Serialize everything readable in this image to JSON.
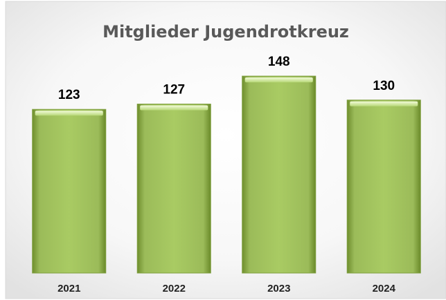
{
  "chart_data": {
    "type": "bar",
    "title": "Mitglieder Jugendrotkreuz",
    "categories": [
      "2021",
      "2022",
      "2023",
      "2024"
    ],
    "values": [
      123,
      127,
      148,
      130
    ],
    "color": "#9bbb59",
    "ylim": [
      0,
      160
    ]
  }
}
